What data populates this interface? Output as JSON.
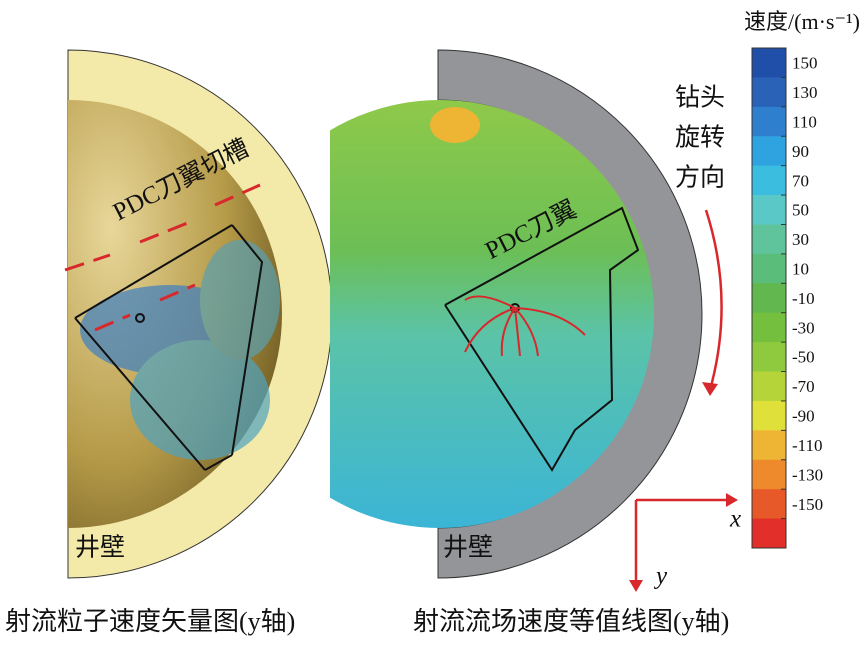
{
  "left_panel": {
    "label": "PDC刀翼切槽",
    "wall": "井壁",
    "caption": "射流粒子速度矢量图(y轴)"
  },
  "right_panel": {
    "label": "PDC刀翼",
    "wall": "井壁",
    "rotation": [
      "钻头",
      "旋转",
      "方向"
    ],
    "axis_x": "x",
    "axis_y": "y",
    "caption": "射流流场速度等值线图(y轴)"
  },
  "colorbar": {
    "title": "速度/(m·s⁻¹)",
    "ticks": [
      150,
      130,
      110,
      90,
      70,
      50,
      30,
      10,
      -10,
      -30,
      -50,
      -70,
      -90,
      -110,
      -130,
      -150
    ],
    "colors": [
      "#1f4fa8",
      "#2a62b8",
      "#2f7fcf",
      "#2fa3e0",
      "#3bbde0",
      "#5bc8c8",
      "#5fc39b",
      "#5bbd7a",
      "#62b84e",
      "#74bf3e",
      "#8fc93d",
      "#b5d43a",
      "#dfe03a",
      "#eeb534",
      "#ee8a2c",
      "#e8592a",
      "#e22f2a"
    ]
  }
}
